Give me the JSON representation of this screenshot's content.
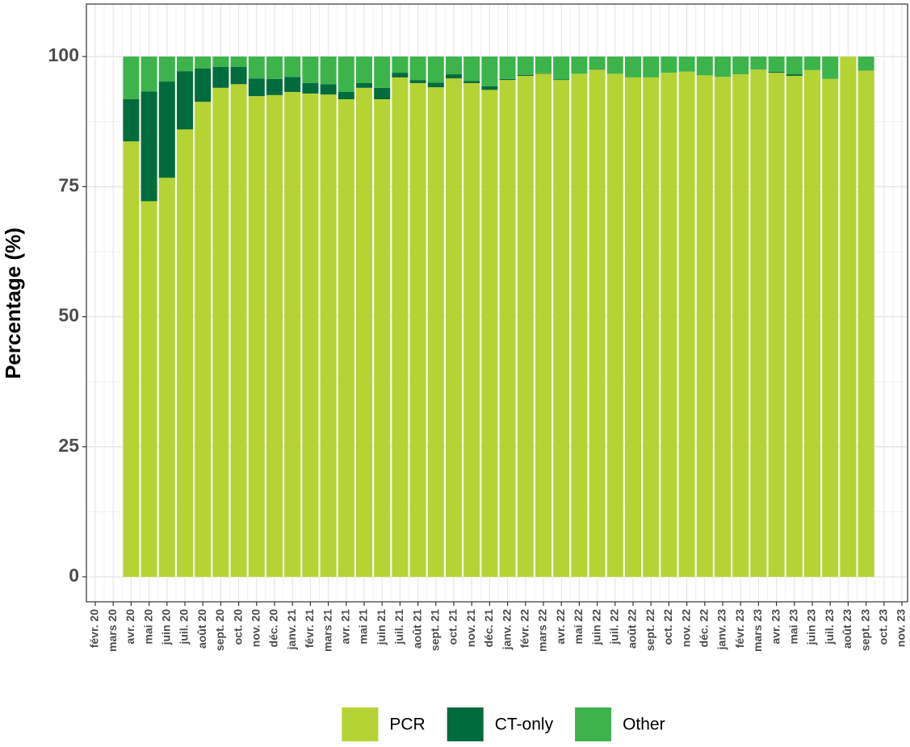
{
  "chart_data": {
    "type": "stacked_bar",
    "y_label": "Percentage (%)",
    "categories": [
      "févr. 20",
      "mars 20",
      "avr. 20",
      "mai 20",
      "juin 20",
      "juil. 20",
      "août 20",
      "sept. 20",
      "oct. 20",
      "nov. 20",
      "déc. 20",
      "janv. 21",
      "févr. 21",
      "mars 21",
      "avr. 21",
      "mai 21",
      "juin 21",
      "juil. 21",
      "août 21",
      "sept. 21",
      "oct. 21",
      "nov. 21",
      "déc. 21",
      "janv. 22",
      "févr. 22",
      "mars 22",
      "avr. 22",
      "mai 22",
      "juin 22",
      "juil. 22",
      "août 22",
      "sept. 22",
      "oct. 22",
      "nov. 22",
      "déc. 22",
      "janv. 23",
      "févr. 23",
      "mars 23",
      "avr. 23",
      "mai 23",
      "juin 23",
      "juil. 23",
      "août 23",
      "sept. 23",
      "oct. 23",
      "nov. 23"
    ],
    "series": [
      {
        "name": "PCR",
        "color": "#b5d334",
        "values": [
          null,
          null,
          83.7,
          72.2,
          76.7,
          86,
          91.3,
          94,
          94.7,
          92.4,
          92.6,
          93.2,
          92.9,
          92.7,
          91.8,
          94,
          91.8,
          96,
          94.9,
          94.1,
          95.8,
          94.9,
          93.6,
          95.5,
          96.3,
          96.7,
          95.5,
          96.7,
          97.5,
          96.7,
          96,
          96,
          96.9,
          97.1,
          96.4,
          96.1,
          96.6,
          97.5,
          96.9,
          96.3,
          97.4,
          95.7,
          100,
          97.3,
          null,
          null
        ]
      },
      {
        "name": "CT-only",
        "color": "#006b3c",
        "values": [
          null,
          null,
          8.1,
          21.1,
          18.5,
          11.2,
          6.4,
          4,
          3.3,
          3.4,
          3.1,
          2.9,
          2,
          2,
          1.4,
          0.9,
          2.2,
          0.9,
          0.6,
          0.9,
          0.8,
          0.4,
          0.7,
          0.2,
          0.2,
          0.1,
          0.1,
          0,
          0.1,
          0,
          0,
          0,
          0,
          0,
          0,
          0,
          0,
          0,
          0.2,
          0.3,
          0,
          0,
          0,
          0,
          null,
          null
        ]
      },
      {
        "name": "Other",
        "color": "#3cb44b",
        "values": [
          null,
          null,
          8.2,
          6.7,
          4.8,
          2.8,
          2.3,
          2,
          2,
          4.2,
          4.3,
          3.9,
          5.1,
          5.3,
          6.8,
          5.1,
          6,
          3.1,
          4.5,
          5,
          3.4,
          4.7,
          5.7,
          4.3,
          3.5,
          3.2,
          4.4,
          3.3,
          2.4,
          3.3,
          4,
          4,
          3.1,
          2.9,
          3.6,
          3.9,
          3.4,
          2.5,
          2.9,
          3.4,
          2.6,
          4.3,
          0,
          2.7,
          null,
          null
        ]
      }
    ],
    "ylim": [
      -4.8,
      110.1
    ],
    "yticks": [
      0,
      25,
      50,
      75,
      100
    ],
    "grid": true,
    "legend": "bottom"
  }
}
